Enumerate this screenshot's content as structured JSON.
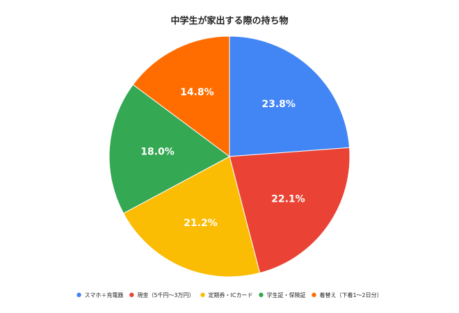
{
  "chart_data": {
    "type": "pie",
    "title": "中学生が家出する際の持ち物",
    "legend_position": "bottom",
    "slices": [
      {
        "label": "スマホ＋充電器",
        "value": 23.8,
        "display": "23.8%",
        "color": "#4285F4"
      },
      {
        "label": "現金（5千円～3万円）",
        "value": 22.1,
        "display": "22.1%",
        "color": "#EA4335"
      },
      {
        "label": "定期券・ICカード",
        "value": 21.2,
        "display": "21.2%",
        "color": "#FBBC04"
      },
      {
        "label": "学生証・保険証",
        "value": 18.0,
        "display": "18.0%",
        "color": "#34A853"
      },
      {
        "label": "着替え（下着1～2日分）",
        "value": 14.8,
        "display": "14.8%",
        "color": "#FF6D01"
      }
    ]
  }
}
